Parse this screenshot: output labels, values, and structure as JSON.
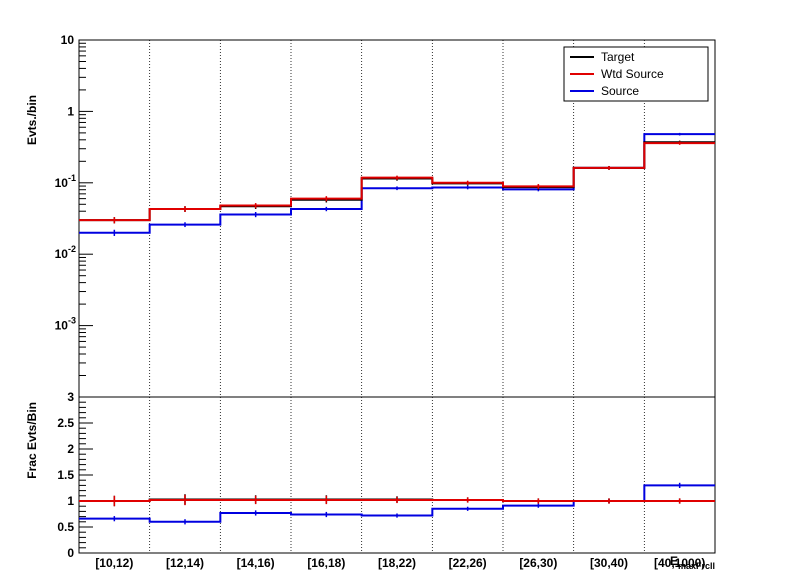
{
  "chart_data": [
    {
      "type": "line",
      "panel": "main",
      "ylabel": "Evts./bin",
      "xlabel": "E_maxFrcll",
      "yscale": "log",
      "ylim": [
        0.0001,
        10
      ],
      "y_tick_labels": [
        "10^-3",
        "10^-2",
        "10^-1",
        "1",
        "10"
      ],
      "grid": "vertical-dotted",
      "legend_position": "top-right",
      "categories": [
        "[10,12)",
        "[12,14)",
        "[14,16)",
        "[16,18)",
        "[18,22)",
        "[22,26)",
        "[26,30)",
        "[30,40)",
        "[40,1000)"
      ],
      "series": [
        {
          "name": "Target",
          "color": "#000000",
          "values": [
            0.03,
            0.043,
            0.047,
            0.058,
            0.115,
            0.098,
            0.087,
            0.162,
            0.37
          ],
          "errors": [
            0.003,
            0.004,
            0.004,
            0.005,
            0.008,
            0.007,
            0.007,
            0.01,
            0.02
          ]
        },
        {
          "name": "Wtd Source",
          "color": "#e00000",
          "values": [
            0.03,
            0.043,
            0.048,
            0.06,
            0.118,
            0.1,
            0.089,
            0.162,
            0.36
          ],
          "errors": [
            0.003,
            0.004,
            0.004,
            0.005,
            0.008,
            0.007,
            0.007,
            0.01,
            0.02
          ]
        },
        {
          "name": "Source",
          "color": "#0000e0",
          "values": [
            0.02,
            0.026,
            0.036,
            0.043,
            0.084,
            0.086,
            0.081,
            0.162,
            0.48
          ],
          "errors": [
            0.002,
            0.002,
            0.003,
            0.003,
            0.005,
            0.005,
            0.005,
            0.008,
            0.02
          ]
        }
      ]
    },
    {
      "type": "line",
      "panel": "ratio",
      "ylabel": "Frac Evts/Bin",
      "ylim": [
        0,
        3
      ],
      "y_ticks": [
        0,
        0.5,
        1,
        1.5,
        2,
        2.5,
        3
      ],
      "y_tick_labels": [
        "0",
        "0.5",
        "1",
        "1.5",
        "2",
        "2.5",
        "3"
      ],
      "categories": [
        "[10,12)",
        "[12,14)",
        "[14,16)",
        "[16,18)",
        "[18,22)",
        "[22,26)",
        "[26,30)",
        "[30,40)",
        "[40,1000)"
      ],
      "series": [
        {
          "color": "#000000",
          "values": [
            1.0,
            1.03,
            1.03,
            1.03,
            1.03,
            1.02,
            1.0,
            1.0,
            1.0
          ],
          "errors": [
            0.1,
            0.1,
            0.08,
            0.08,
            0.06,
            0.05,
            0.05,
            0.05,
            0.05
          ]
        },
        {
          "color": "#e00000",
          "values": [
            1.0,
            1.02,
            1.02,
            1.02,
            1.02,
            1.02,
            1.0,
            1.0,
            1.0
          ],
          "errors": [
            0.1,
            0.1,
            0.08,
            0.08,
            0.06,
            0.05,
            0.05,
            0.05,
            0.05
          ]
        },
        {
          "color": "#0000e0",
          "values": [
            0.66,
            0.6,
            0.77,
            0.74,
            0.72,
            0.85,
            0.91,
            1.0,
            1.3
          ],
          "errors": [
            0.05,
            0.05,
            0.05,
            0.05,
            0.04,
            0.04,
            0.04,
            0.04,
            0.05
          ]
        }
      ]
    }
  ]
}
